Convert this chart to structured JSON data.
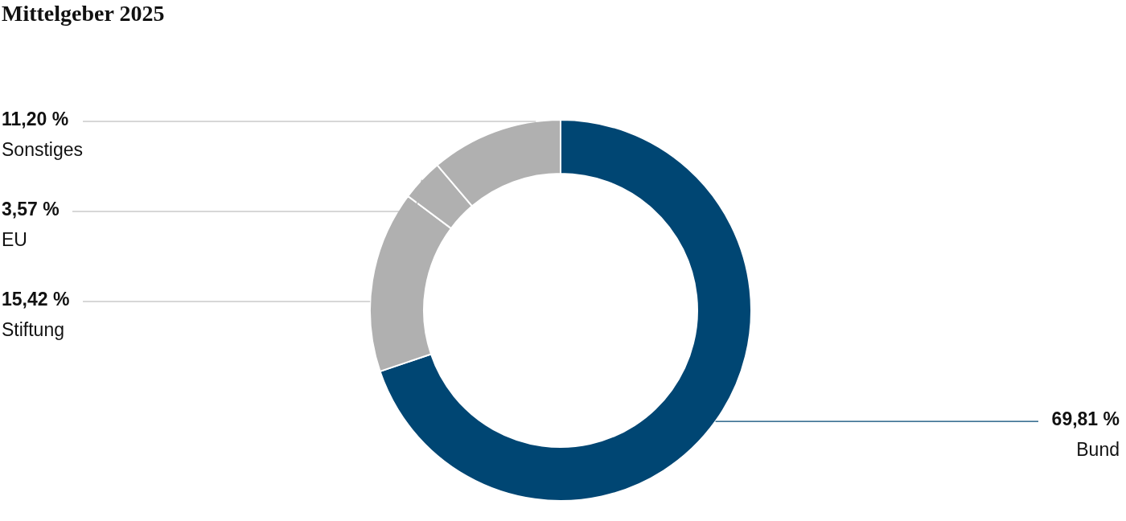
{
  "chart_data": {
    "type": "donut",
    "title": "Mittelgeber 2025",
    "categories": [
      "Bund",
      "Stiftung",
      "EU",
      "Sonstiges"
    ],
    "values": [
      69.81,
      15.42,
      3.57,
      11.2
    ],
    "colors": [
      "#004673",
      "#b0b0b0",
      "#b0b0b0",
      "#b0b0b0"
    ],
    "value_labels": [
      "69,81 %",
      "15,42 %",
      "3,57 %",
      "11,20 %"
    ]
  }
}
